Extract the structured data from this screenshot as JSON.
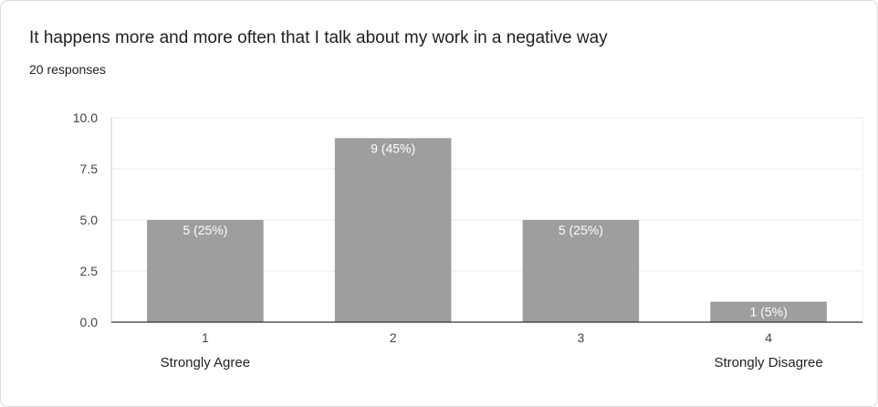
{
  "header": {
    "title": "It happens more and more often that I talk about my work in a negative way",
    "responses": "20 responses"
  },
  "chart_data": {
    "type": "bar",
    "categories": [
      "1",
      "2",
      "3",
      "4"
    ],
    "category_descriptions": [
      "Strongly Agree",
      "",
      "",
      "Strongly Disagree"
    ],
    "values": [
      5,
      9,
      5,
      1
    ],
    "data_labels": [
      "5 (25%)",
      "9 (45%)",
      "5 (25%)",
      "1 (5%)"
    ],
    "ylim": [
      0,
      10
    ],
    "y_ticks": [
      "0.0",
      "2.5",
      "5.0",
      "7.5",
      "10.0"
    ],
    "grid": true,
    "bar_color": "#9e9e9e"
  }
}
